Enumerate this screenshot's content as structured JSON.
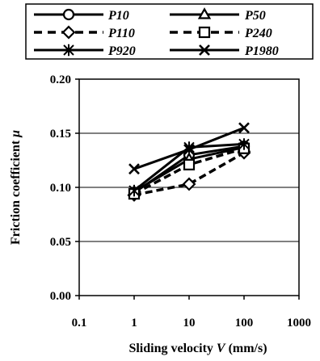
{
  "chart_data": {
    "type": "line",
    "xscale": "log",
    "xlim": [
      0.1,
      1000
    ],
    "ylim": [
      0.0,
      0.2
    ],
    "xticks": [
      "0.1",
      "1",
      "10",
      "100",
      "1000"
    ],
    "yticks": [
      "0.00",
      "0.05",
      "0.10",
      "0.15",
      "0.20"
    ],
    "xlabel": {
      "main": "Sliding velocity ",
      "symbol": "V",
      "unit": " (mm/s)"
    },
    "ylabel": {
      "main": "Friction coefficient ",
      "symbol": "μ"
    },
    "grid": "horizontal",
    "legend_position": "top",
    "x": [
      1,
      10,
      100
    ],
    "series": [
      {
        "name": "P10",
        "marker": "circle",
        "dashed": false,
        "values": [
          0.095,
          0.13,
          0.138
        ]
      },
      {
        "name": "P50",
        "marker": "triangle",
        "dashed": false,
        "values": [
          0.096,
          0.126,
          0.137
        ]
      },
      {
        "name": "P110",
        "marker": "diamond",
        "dashed": true,
        "values": [
          0.093,
          0.103,
          0.132
        ]
      },
      {
        "name": "P240",
        "marker": "square",
        "dashed": true,
        "values": [
          0.094,
          0.121,
          0.136
        ]
      },
      {
        "name": "P920",
        "marker": "asterisk",
        "dashed": false,
        "values": [
          0.097,
          0.137,
          0.14
        ]
      },
      {
        "name": "P1980",
        "marker": "x",
        "dashed": false,
        "values": [
          0.117,
          0.135,
          0.155
        ]
      }
    ]
  }
}
